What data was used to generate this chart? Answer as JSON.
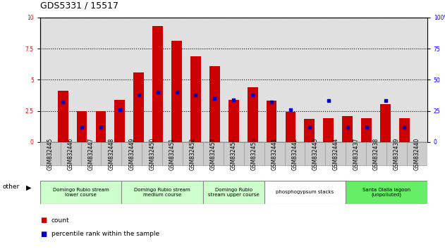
{
  "title": "GDS5331 / 15517",
  "samples": [
    "GSM832445",
    "GSM832446",
    "GSM832447",
    "GSM832448",
    "GSM832449",
    "GSM832450",
    "GSM832451",
    "GSM832452",
    "GSM832453",
    "GSM832454",
    "GSM832455",
    "GSM832441",
    "GSM832442",
    "GSM832443",
    "GSM832444",
    "GSM832437",
    "GSM832438",
    "GSM832439",
    "GSM832440"
  ],
  "count": [
    4.1,
    2.5,
    2.5,
    3.35,
    5.6,
    9.3,
    8.1,
    6.9,
    6.1,
    3.4,
    4.4,
    3.3,
    2.4,
    1.85,
    1.9,
    2.05,
    1.9,
    3.05,
    1.9
  ],
  "percentile": [
    32,
    12,
    12,
    26,
    38,
    40,
    40,
    38,
    35,
    34,
    38,
    32,
    26,
    12,
    33,
    12,
    12,
    33,
    12
  ],
  "groups": [
    {
      "label": "Domingo Rubio stream\nlower course",
      "start": 0,
      "end": 4,
      "color": "#ccffcc"
    },
    {
      "label": "Domingo Rubio stream\nmedium course",
      "start": 4,
      "end": 8,
      "color": "#ccffcc"
    },
    {
      "label": "Domingo Rubio\nstream upper course",
      "start": 8,
      "end": 11,
      "color": "#ccffcc"
    },
    {
      "label": "phosphogypsum stacks",
      "start": 11,
      "end": 15,
      "color": "#ffffff"
    },
    {
      "label": "Santa Olalla lagoon\n(unpolluted)",
      "start": 15,
      "end": 19,
      "color": "#66ee66"
    }
  ],
  "ylim_left": [
    0,
    10
  ],
  "ylim_right": [
    0,
    100
  ],
  "yticks_left": [
    0,
    2.5,
    5.0,
    7.5,
    10
  ],
  "yticks_right": [
    0,
    25,
    50,
    75,
    100
  ],
  "bar_color": "#cc0000",
  "dot_color": "#0000cc",
  "background_color": "#e0e0e0",
  "title_fontsize": 9,
  "tick_fontsize": 5.5,
  "label_fontsize": 6.5
}
